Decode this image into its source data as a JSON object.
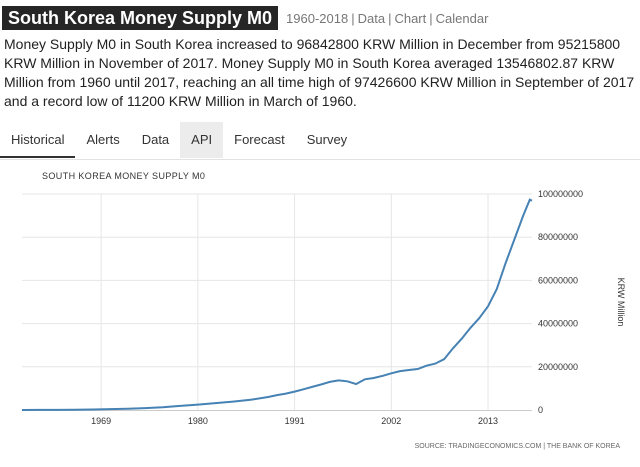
{
  "header": {
    "title": "South Korea Money Supply M0",
    "range": "1960-2018",
    "links": [
      "Data",
      "Chart",
      "Calendar"
    ]
  },
  "description": "Money Supply M0 in South Korea increased to 96842800 KRW Million in December from 95215800 KRW Million in November of 2017. Money Supply M0 in South Korea averaged 13546802.87 KRW Million from 1960 until 2017, reaching an all time high of 97426600 KRW Million in September of 2017 and a record low of 11200 KRW Million in March of 1960.",
  "tabs": [
    {
      "label": "Historical",
      "active": true
    },
    {
      "label": "Alerts",
      "active": false
    },
    {
      "label": "Data",
      "active": false
    },
    {
      "label": "API",
      "active": false
    },
    {
      "label": "Forecast",
      "active": false
    },
    {
      "label": "Survey",
      "active": false
    }
  ],
  "colors": {
    "line": "#4682b4",
    "grid": "#e6e6e6",
    "title_bg": "#262626"
  },
  "chart_data": {
    "type": "line",
    "title": "SOUTH KOREA MONEY SUPPLY M0",
    "ylabel": "KRW Million",
    "source": "SOURCE: TRADINGECONOMICS.COM | THE BANK OF KOREA",
    "x_ticks": [
      "1969",
      "1980",
      "1991",
      "2002",
      "2013"
    ],
    "y_ticks": [
      "100000000",
      "80000000",
      "60000000",
      "40000000",
      "20000000",
      "0"
    ],
    "xlim": [
      1960,
      2018
    ],
    "ylim": [
      0,
      100000000
    ],
    "grid": true,
    "y_axis_side": "right",
    "series": [
      {
        "x": [
          1960,
          1962,
          1964,
          1966,
          1968,
          1970,
          1972,
          1974,
          1976,
          1978,
          1980,
          1982,
          1984,
          1986,
          1988,
          1989,
          1990,
          1991,
          1992,
          1993,
          1994,
          1995,
          1996,
          1997,
          1998,
          1999,
          2000,
          2001,
          2002,
          2003,
          2004,
          2005,
          2006,
          2007,
          2008,
          2009,
          2010,
          2011,
          2012,
          2013,
          2014,
          2015,
          2016,
          2017,
          2017.75,
          2018
        ],
        "y": [
          11200,
          30000,
          60000,
          120000,
          250000,
          400000,
          600000,
          900000,
          1300000,
          1900000,
          2500000,
          3200000,
          3900000,
          4700000,
          6000000,
          6900000,
          7600000,
          8500000,
          9600000,
          10700000,
          11800000,
          13000000,
          13700000,
          13300000,
          12000000,
          14200000,
          14800000,
          15800000,
          17000000,
          18000000,
          18500000,
          19000000,
          20500000,
          21500000,
          23500000,
          28500000,
          33000000,
          38000000,
          42500000,
          48000000,
          56000000,
          68000000,
          79000000,
          90000000,
          97426600,
          96842800
        ]
      }
    ]
  }
}
